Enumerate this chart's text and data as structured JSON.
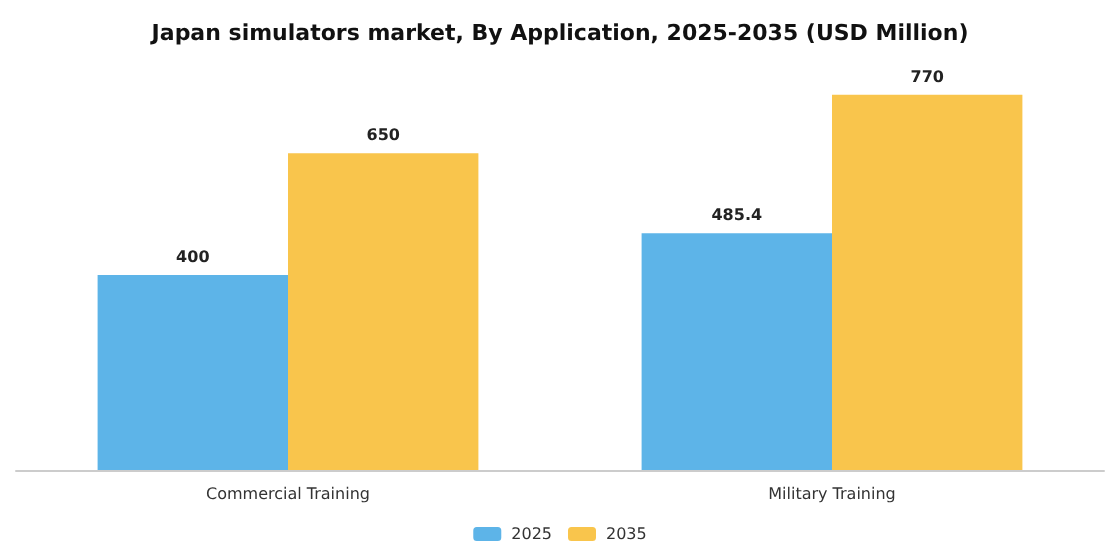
{
  "chart_data": {
    "type": "bar",
    "title": "Japan simulators market, By Application, 2025-2035 (USD Million)",
    "categories": [
      "Commercial Training",
      "Military Training"
    ],
    "series": [
      {
        "name": "2025",
        "color": "#5db4e8",
        "values": [
          400,
          485.4
        ]
      },
      {
        "name": "2035",
        "color": "#f9c54c",
        "values": [
          650,
          770
        ]
      }
    ],
    "data_labels": true,
    "legend": "bottom"
  }
}
